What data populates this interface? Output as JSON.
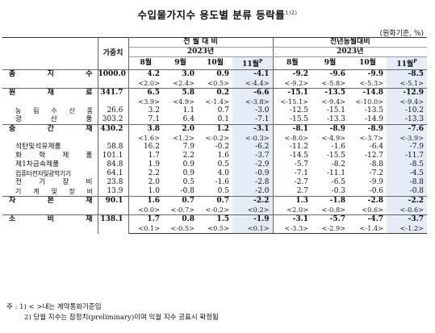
{
  "title": "수입물가지수 용도별 분류 등락률",
  "title_sup": "1)2)",
  "unit": "(원화기준, %)",
  "header": {
    "weight": "가중치",
    "group1": "전 월 대 비",
    "group2": "전년동월대비",
    "year1": "2023년",
    "year2": "2023년",
    "months1": [
      "8월",
      "9월",
      "10월",
      "11월P"
    ],
    "months2": [
      "8월",
      "9월",
      "10월",
      "11월P"
    ]
  },
  "rows": [
    {
      "label": "총 지 수",
      "type": "main",
      "weight": "1000.0",
      "mom": [
        "4.2",
        "3.0",
        "0.9",
        "-4.1"
      ],
      "mom_br": [
        "<2.0>",
        "<2.4>",
        "<0.5>",
        "<-4.4>"
      ],
      "yoy": [
        "-9.2",
        "-9.6",
        "-9.9",
        "-8.5"
      ],
      "yoy_br": [
        "<-9.2>",
        "<-5.8>",
        "<-5.3>",
        "<-5.1>"
      ]
    },
    {
      "label": "원 재 료",
      "type": "main",
      "weight": "341.7",
      "mom": [
        "6.5",
        "5.8",
        "0.2",
        "-6.6"
      ],
      "mom_br": [
        "<3.9>",
        "<4.9>",
        "<-1.4>",
        "<-3.8>"
      ],
      "yoy": [
        "-15.1",
        "-13.5",
        "-14.8",
        "-12.9"
      ],
      "yoy_br": [
        "<-15.1>",
        "<-9.4>",
        "<-10.0>",
        "<-9.4>"
      ]
    },
    {
      "label": "농 림 수 산 품",
      "type": "sub",
      "weight": "26.6",
      "mom": [
        "3.2",
        "1.1",
        "0.7",
        "-3.0"
      ],
      "yoy": [
        "-12.5",
        "-15.1",
        "-13.5",
        "-10.2"
      ]
    },
    {
      "label": "광 산 품",
      "type": "sub",
      "weight": "303.2",
      "mom": [
        "7.1",
        "6.4",
        "0.1",
        "-7.1"
      ],
      "yoy": [
        "-15.5",
        "-13.3",
        "-14.9",
        "-13.3"
      ]
    },
    {
      "label": "중 간 재",
      "type": "main",
      "weight": "430.2",
      "mom": [
        "3.8",
        "2.0",
        "1.2",
        "-3.1"
      ],
      "mom_br": [
        "<1.6>",
        "<1.2>",
        "<-0.2>",
        "<-0.3>"
      ],
      "yoy": [
        "-8.1",
        "-8.9",
        "-8.9",
        "-7.6"
      ],
      "yoy_br": [
        "<-8.0>",
        "<-4.9>",
        "<-3.7>",
        "<-3.9>"
      ]
    },
    {
      "label": "석탄및석유제품",
      "type": "sub",
      "weight": "58.8",
      "mom": [
        "16.2",
        "7.9",
        "-0.2",
        "-6.2"
      ],
      "yoy": [
        "-11.2",
        "-1.6",
        "-6.4",
        "-7.9"
      ]
    },
    {
      "label": "화 학 제 품",
      "type": "sub",
      "weight": "101.1",
      "mom": [
        "1.7",
        "2.2",
        "1.6",
        "-3.7"
      ],
      "yoy": [
        "-14.5",
        "-15.5",
        "-12.7",
        "-11.7"
      ]
    },
    {
      "label": "제1차금속제품",
      "type": "sub",
      "weight": "84.8",
      "mom": [
        "1.9",
        "0.9",
        "0.5",
        "-2.9"
      ],
      "yoy": [
        "-5.7",
        "-8.2",
        "-8.8",
        "-8.5"
      ]
    },
    {
      "label": "컴퓨터전자및광학기기",
      "type": "sub",
      "weight": "64.1",
      "mom": [
        "2.2",
        "0.9",
        "4.0",
        "-0.9"
      ],
      "yoy": [
        "-7.1",
        "-11.1",
        "-7.2",
        "-4.5"
      ]
    },
    {
      "label": "전 기 장 비",
      "type": "sub",
      "weight": "23.8",
      "mom": [
        "2.0",
        "0.5",
        "-1.6",
        "-2.8"
      ],
      "yoy": [
        "-2.7",
        "-6.5",
        "-9.9",
        "-8.8"
      ]
    },
    {
      "label": "기 계 및 장 비",
      "type": "sub",
      "weight": "13.9",
      "mom": [
        "1.0",
        "-0.8",
        "0.5",
        "-2.0"
      ],
      "yoy": [
        "2.7",
        "-0.3",
        "-0.6",
        "-0.8"
      ]
    },
    {
      "label": "자 본 재",
      "type": "main",
      "weight": "90.1",
      "mom": [
        "1.6",
        "0.7",
        "0.7",
        "-2.2"
      ],
      "mom_br": [
        "<0.0>",
        "<-0.7>",
        "<-0.2>",
        "<0.2>"
      ],
      "yoy": [
        "1.3",
        "-1.8",
        "-2.8",
        "-2.2"
      ],
      "yoy_br": [
        "<2.0>",
        "<-0.8>",
        "<0.6>",
        "<-0.6>"
      ]
    },
    {
      "label": "소 비 재",
      "type": "main",
      "weight": "138.1",
      "mom": [
        "1.7",
        "0.8",
        "1.5",
        "-1.9"
      ],
      "mom_br": [
        "<0.1>",
        "<-0.5>",
        "<0.5>",
        "<0.1>"
      ],
      "yoy": [
        "-3.1",
        "-5.7",
        "-4.7",
        "-3.7"
      ],
      "yoy_br": [
        "<-3.3>",
        "<-2.9>",
        "<-1.4>",
        "<-1.2>"
      ]
    }
  ],
  "notes": [
    "주 : 1) < >내는 계약통화기준임",
    "2) 당월 지수는 잠정치(preliminary)이며 익월 지수 공표시 확정됨"
  ]
}
